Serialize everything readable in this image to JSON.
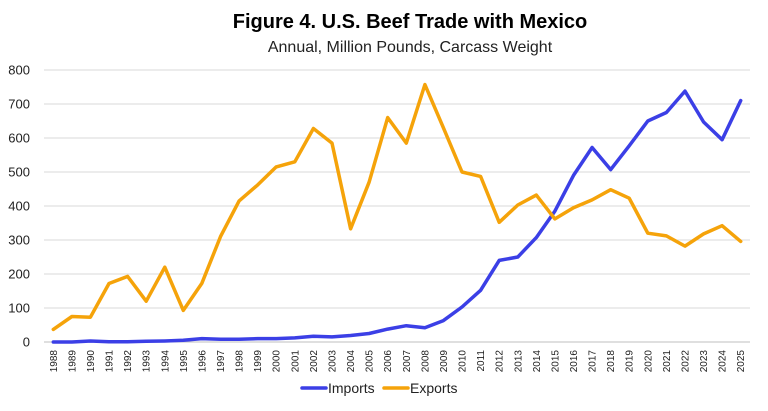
{
  "chart_data": {
    "type": "line",
    "title": "Figure 4. U.S. Beef Trade with Mexico",
    "subtitle": "Annual, Million Pounds, Carcass Weight",
    "xlabel": "",
    "ylabel": "",
    "ylim": [
      0,
      800
    ],
    "yticks": [
      0,
      100,
      200,
      300,
      400,
      500,
      600,
      700,
      800
    ],
    "grid": true,
    "legend_position": "bottom",
    "x": [
      "1988",
      "1989",
      "1990",
      "1991",
      "1992",
      "1993",
      "1994",
      "1995",
      "1996",
      "1997",
      "1998",
      "1999",
      "2000",
      "2001",
      "2002",
      "2003",
      "2004",
      "2005",
      "2006",
      "2007",
      "2008",
      "2009",
      "2010",
      "2011",
      "2012",
      "2013",
      "2014",
      "2015",
      "2016",
      "2017",
      "2018",
      "2019",
      "2020",
      "2021",
      "2022",
      "2023",
      "2024",
      "2025"
    ],
    "series": [
      {
        "name": "Imports",
        "color": "#3b3fe6",
        "values": [
          0,
          0,
          3,
          1,
          1,
          2,
          3,
          5,
          10,
          8,
          8,
          10,
          10,
          12,
          17,
          15,
          19,
          25,
          38,
          48,
          42,
          63,
          103,
          152,
          240,
          250,
          307,
          385,
          490,
          572,
          507,
          577,
          650,
          675,
          738,
          647,
          595,
          710
        ]
      },
      {
        "name": "Exports",
        "color": "#f5a30a",
        "values": [
          37,
          75,
          73,
          172,
          193,
          120,
          220,
          93,
          173,
          310,
          415,
          462,
          515,
          530,
          628,
          585,
          333,
          470,
          660,
          585,
          757,
          630,
          500,
          487,
          352,
          403,
          432,
          362,
          395,
          418,
          448,
          423,
          320,
          312,
          282,
          318,
          342,
          296
        ]
      }
    ]
  }
}
